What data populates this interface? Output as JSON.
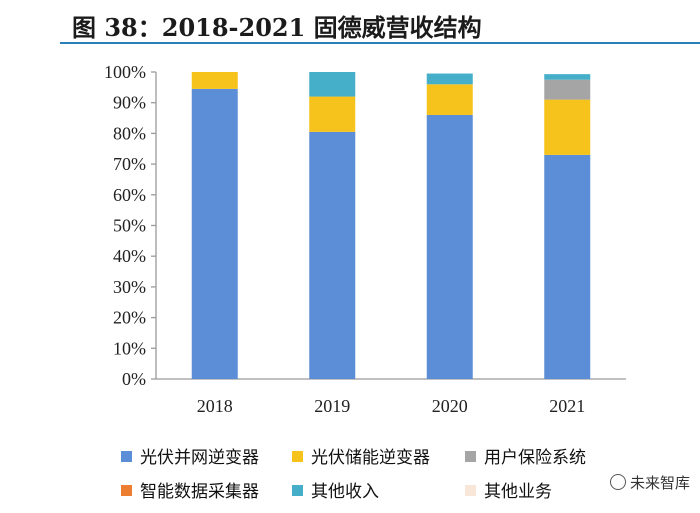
{
  "title": "图 38：2018-2021 固德威营收结构",
  "watermark": "未来智库",
  "chart_data": {
    "type": "bar",
    "stacked": true,
    "categories": [
      "2018",
      "2019",
      "2020",
      "2021"
    ],
    "ylim": [
      0,
      100
    ],
    "yticks": [
      "0%",
      "10%",
      "20%",
      "30%",
      "40%",
      "50%",
      "60%",
      "70%",
      "80%",
      "90%",
      "100%"
    ],
    "series": [
      {
        "name": "光伏并网逆变器",
        "color": "#5b8ed6",
        "values": [
          94.5,
          80.5,
          86.0,
          73.0
        ]
      },
      {
        "name": "光伏储能逆变器",
        "color": "#f6c21c",
        "values": [
          5.5,
          11.5,
          10.0,
          18.0
        ]
      },
      {
        "name": "用户保险系统",
        "color": "#a5a5a5",
        "values": [
          0,
          0,
          0,
          6.5
        ]
      },
      {
        "name": "智能数据采集器",
        "color": "#ed7d31",
        "values": [
          0,
          0,
          0,
          0
        ]
      },
      {
        "name": "其他收入",
        "color": "#45aec9",
        "values": [
          0,
          8.0,
          3.5,
          1.8
        ]
      },
      {
        "name": "其他业务",
        "color": "#f8e6d9",
        "values": [
          0,
          0,
          0,
          0
        ]
      }
    ]
  }
}
